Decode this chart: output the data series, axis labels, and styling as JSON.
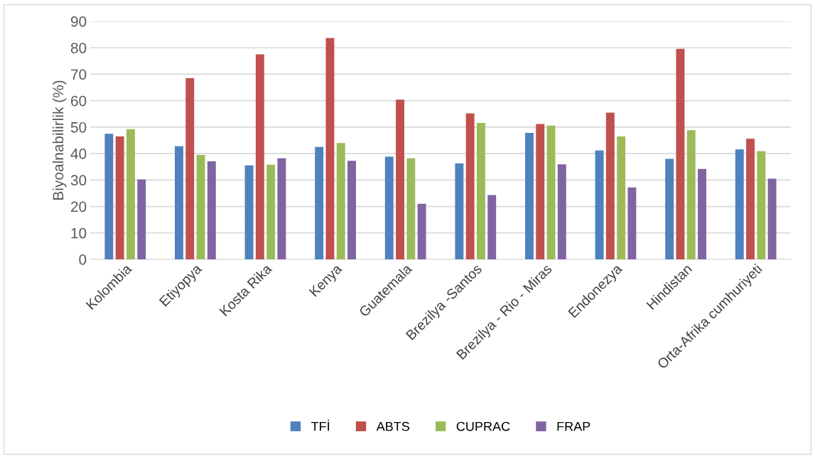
{
  "chart_data": {
    "type": "bar",
    "ylabel": "Biyoalnabilirlik (%)",
    "categories": [
      "Kolombia",
      "Etiyopya",
      "Kosta Rika",
      "Kenya",
      "Guatemala",
      "Brezilya -Santos",
      "Brezilya - Rio - Miras",
      "Endonezya",
      "Hindistan",
      "Orta-Afrika cumhuriyeti"
    ],
    "series": [
      {
        "name": "TFİ",
        "color": "#4f81bd",
        "values": [
          47.5,
          42.8,
          35.5,
          42.5,
          38.8,
          36.3,
          47.8,
          41.2,
          38.0,
          41.6
        ]
      },
      {
        "name": "ABTS",
        "color": "#c0504d",
        "values": [
          46.5,
          68.5,
          77.5,
          83.7,
          60.4,
          55.2,
          51.2,
          55.5,
          79.6,
          45.6
        ]
      },
      {
        "name": "CUPRAC",
        "color": "#9bbb59",
        "values": [
          49.2,
          39.5,
          35.8,
          44.0,
          38.2,
          51.6,
          50.6,
          46.5,
          48.8,
          40.9
        ]
      },
      {
        "name": "FRAP",
        "color": "#8064a2",
        "values": [
          30.2,
          37.1,
          38.2,
          37.3,
          21.0,
          24.3,
          35.9,
          27.2,
          34.2,
          30.5
        ]
      }
    ],
    "ylim": [
      0,
      90
    ],
    "yticks": [
      0,
      10,
      20,
      30,
      40,
      50,
      60,
      70,
      80,
      90
    ],
    "grid": "y",
    "legend": "bottom"
  }
}
